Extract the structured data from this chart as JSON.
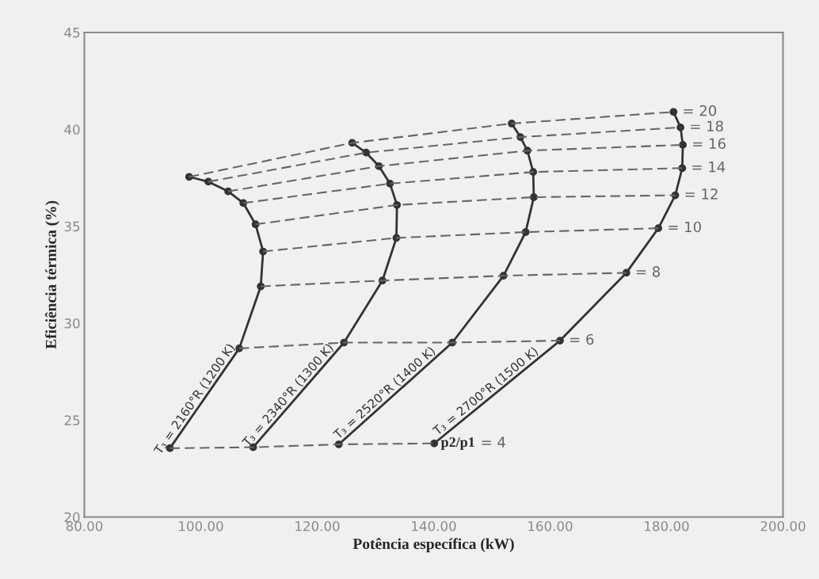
{
  "chart_data": {
    "type": "line",
    "xlabel": "Potência específica (kW)",
    "ylabel": "Eficiência térmica (%)",
    "xlim": [
      80,
      200
    ],
    "ylim": [
      20,
      45
    ],
    "xticks": [
      {
        "value": 80,
        "label": "80.00"
      },
      {
        "value": 100,
        "label": "100.00"
      },
      {
        "value": 120,
        "label": "120.00"
      },
      {
        "value": 140,
        "label": "140.00"
      },
      {
        "value": 160,
        "label": "160.00"
      },
      {
        "value": 180,
        "label": "180.00"
      },
      {
        "value": 200,
        "label": "200.00"
      }
    ],
    "yticks": [
      20,
      25,
      30,
      35,
      40,
      45
    ],
    "grid": false,
    "series": [
      {
        "name": "T₃ = 2160°R (1200 K)",
        "color": "#333333",
        "marker": "circle",
        "line_style": "solid",
        "x": [
          94.7,
          106.6,
          110.3,
          110.7,
          109.4,
          107.3,
          104.7,
          101.3,
          98.0
        ],
        "values": [
          23.55,
          28.7,
          31.9,
          33.7,
          35.1,
          36.2,
          36.8,
          37.3,
          37.55
        ]
      },
      {
        "name": "T₃ = 2340°R (1300 K)",
        "color": "#333333",
        "marker": "circle",
        "line_style": "solid",
        "x": [
          109.0,
          124.6,
          131.2,
          133.6,
          133.7,
          132.5,
          130.6,
          128.4,
          126.0
        ],
        "values": [
          23.6,
          29.0,
          32.2,
          34.4,
          36.1,
          37.2,
          38.1,
          38.8,
          39.3
        ]
      },
      {
        "name": "T₃ = 2520°R (1400 K)",
        "color": "#333333",
        "marker": "circle",
        "line_style": "solid",
        "x": [
          123.7,
          143.2,
          152.0,
          155.8,
          157.2,
          157.1,
          156.1,
          154.9,
          153.4
        ],
        "values": [
          23.75,
          29.0,
          32.45,
          34.7,
          36.5,
          37.8,
          38.9,
          39.6,
          40.3
        ]
      },
      {
        "name": "T₃ = 2700°R (1500 K)",
        "color": "#333333",
        "marker": "circle",
        "line_style": "solid",
        "x": [
          140.1,
          161.7,
          173.1,
          178.6,
          181.5,
          182.7,
          182.8,
          182.4,
          181.2
        ],
        "values": [
          23.8,
          29.1,
          32.6,
          34.9,
          36.6,
          38.0,
          39.2,
          40.1,
          40.9
        ]
      },
      {
        "name": "= 4",
        "color": "#666666",
        "marker": "none",
        "line_style": "dashed",
        "x": [
          94.7,
          109.0,
          123.7,
          140.1
        ],
        "values": [
          23.55,
          23.6,
          23.75,
          23.8
        ]
      },
      {
        "name": "= 6",
        "color": "#666666",
        "marker": "none",
        "line_style": "dashed",
        "x": [
          106.6,
          124.6,
          143.2,
          161.7
        ],
        "values": [
          28.7,
          29.0,
          29.0,
          29.1
        ]
      },
      {
        "name": "= 8",
        "color": "#666666",
        "marker": "none",
        "line_style": "dashed",
        "x": [
          110.3,
          131.2,
          152.0,
          173.1
        ],
        "values": [
          31.9,
          32.2,
          32.45,
          32.6
        ]
      },
      {
        "name": "= 10",
        "color": "#666666",
        "marker": "none",
        "line_style": "dashed",
        "x": [
          110.7,
          133.6,
          155.8,
          178.6
        ],
        "values": [
          33.7,
          34.4,
          34.7,
          34.9
        ]
      },
      {
        "name": "= 12",
        "color": "#666666",
        "marker": "none",
        "line_style": "dashed",
        "x": [
          109.4,
          133.7,
          157.2,
          181.5
        ],
        "values": [
          35.1,
          36.1,
          36.5,
          36.6
        ]
      },
      {
        "name": "= 14",
        "color": "#666666",
        "marker": "none",
        "line_style": "dashed",
        "x": [
          107.3,
          132.5,
          157.1,
          182.7
        ],
        "values": [
          36.2,
          37.2,
          37.8,
          38.0
        ]
      },
      {
        "name": "= 16",
        "color": "#666666",
        "marker": "none",
        "line_style": "dashed",
        "x": [
          104.7,
          130.6,
          156.1,
          182.8
        ],
        "values": [
          36.8,
          38.1,
          38.9,
          39.2
        ]
      },
      {
        "name": "= 18",
        "color": "#666666",
        "marker": "none",
        "line_style": "dashed",
        "x": [
          101.3,
          128.4,
          154.9,
          182.4
        ],
        "values": [
          37.3,
          38.8,
          39.6,
          40.1
        ]
      },
      {
        "name": "= 20",
        "color": "#666666",
        "marker": "none",
        "line_style": "dashed",
        "x": [
          98.0,
          126.0,
          153.4,
          181.2
        ],
        "values": [
          37.55,
          39.3,
          40.3,
          40.9
        ]
      }
    ],
    "annotations": [
      {
        "text": "p2/p1",
        "x": 140.1,
        "y": 23.8
      }
    ]
  }
}
